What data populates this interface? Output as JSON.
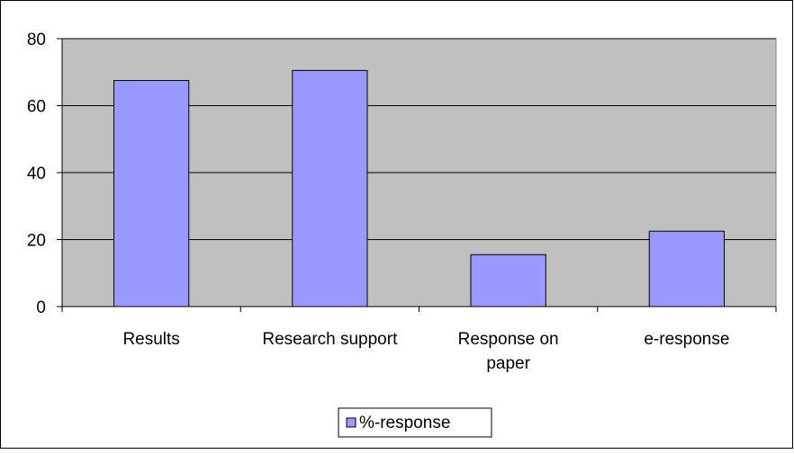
{
  "chart_data": {
    "type": "bar",
    "categories": [
      [
        "Results"
      ],
      [
        "Research support"
      ],
      [
        "Response on",
        "paper"
      ],
      [
        "e-response"
      ]
    ],
    "series": [
      {
        "name": "%-response",
        "values": [
          67.5,
          70.5,
          15.5,
          22.5
        ]
      }
    ],
    "y_ticks": [
      "0",
      "20",
      "40",
      "60",
      "80"
    ],
    "ylim": [
      0,
      80
    ],
    "grid": true,
    "legend_position": "bottom"
  },
  "colors": {
    "plot_background": "#c0c0c0",
    "bar_fill": "#9999ff",
    "bar_stroke": "#000000",
    "grid_line": "#000000"
  }
}
